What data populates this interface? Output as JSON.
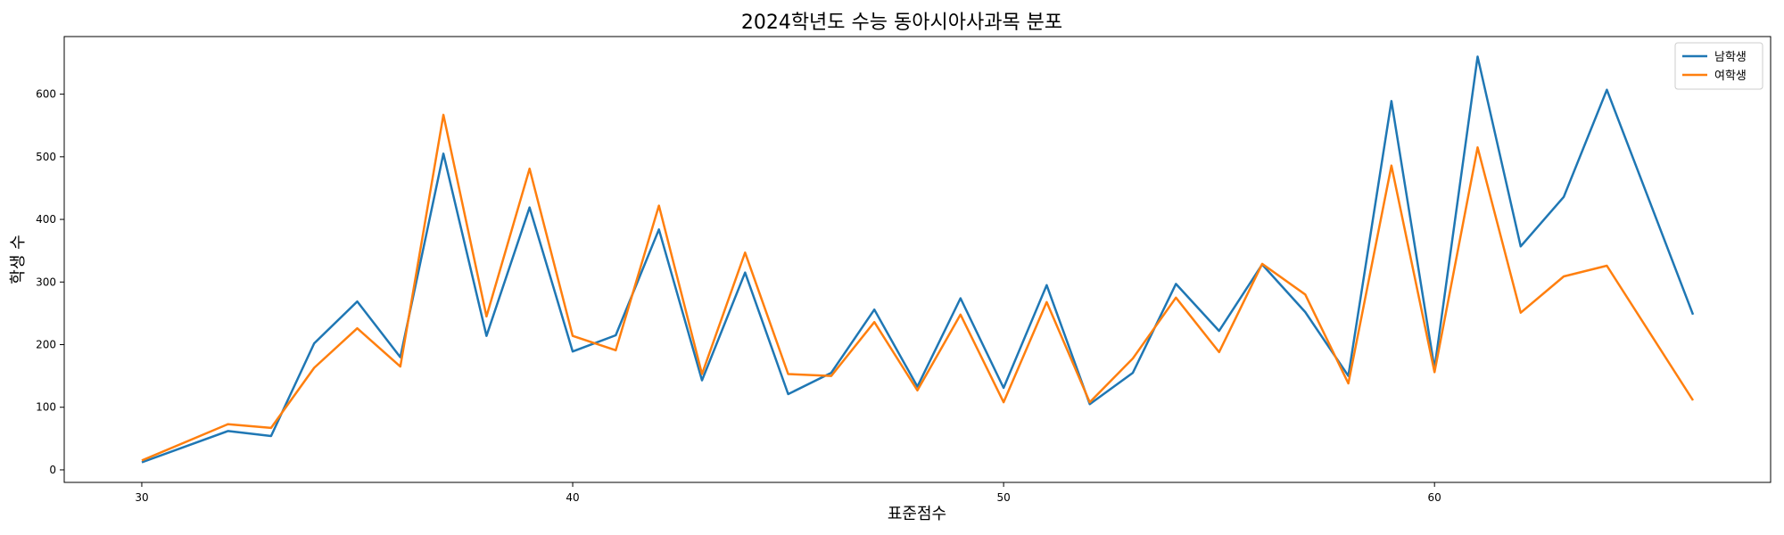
{
  "chart_data": {
    "type": "line",
    "title": "2024학년도 수능 동아시아사과목 분포",
    "xlabel": "표준점수",
    "ylabel": "학생 수",
    "xlim": [
      28.2,
      67.8
    ],
    "ylim": [
      -20,
      692
    ],
    "xticks": [
      30,
      40,
      50,
      60
    ],
    "yticks": [
      0,
      100,
      200,
      300,
      400,
      500,
      600
    ],
    "grid": false,
    "legend_position": "top-right",
    "x": [
      30,
      32,
      33,
      34,
      35,
      36,
      37,
      38,
      39,
      40,
      41,
      42,
      43,
      44,
      45,
      46,
      47,
      48,
      49,
      50,
      51,
      52,
      53,
      54,
      55,
      56,
      57,
      58,
      59,
      60,
      61,
      62,
      63,
      64,
      66
    ],
    "series": [
      {
        "name": "남학생",
        "color": "#1f77b4",
        "values": [
          12,
          62,
          54,
          202,
          269,
          180,
          505,
          214,
          419,
          189,
          215,
          384,
          143,
          315,
          121,
          155,
          256,
          133,
          274,
          131,
          295,
          105,
          155,
          297,
          222,
          328,
          252,
          150,
          589,
          162,
          660,
          357,
          436,
          607,
          248
        ]
      },
      {
        "name": "여학생",
        "color": "#ff7f0e",
        "values": [
          15,
          73,
          67,
          163,
          226,
          165,
          567,
          245,
          481,
          214,
          191,
          422,
          153,
          347,
          153,
          150,
          236,
          127,
          248,
          108,
          268,
          108,
          178,
          275,
          188,
          329,
          280,
          138,
          486,
          156,
          515,
          251,
          309,
          326,
          111
        ]
      }
    ]
  }
}
